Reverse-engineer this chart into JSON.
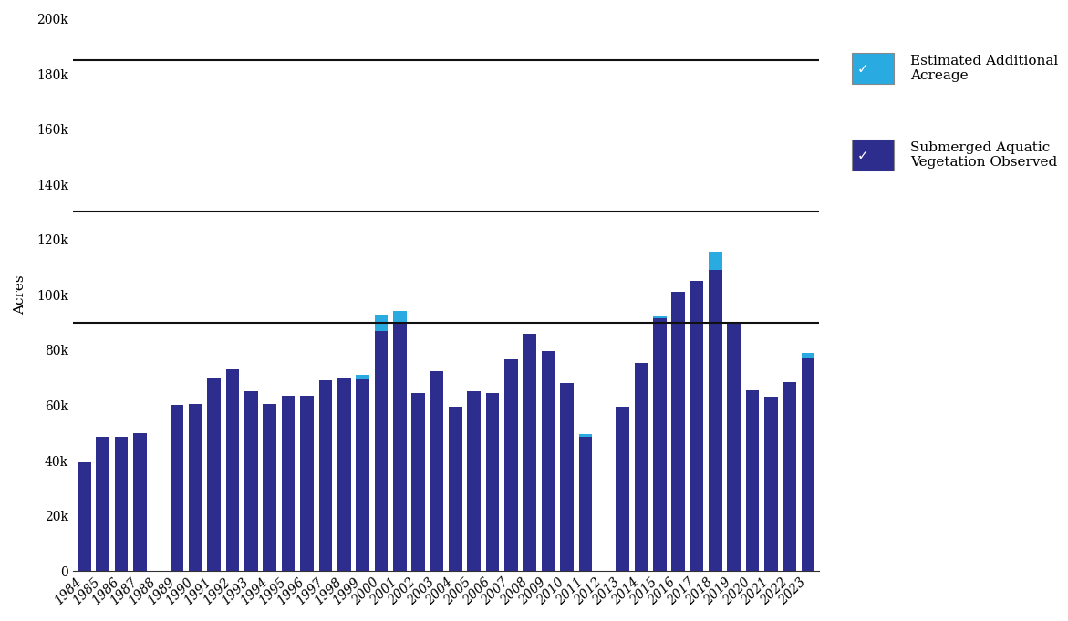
{
  "years": [
    1984,
    1985,
    1986,
    1987,
    1988,
    1989,
    1990,
    1991,
    1992,
    1993,
    1994,
    1995,
    1996,
    1997,
    1998,
    1999,
    2000,
    2001,
    2002,
    2003,
    2004,
    2005,
    2006,
    2007,
    2008,
    2009,
    2010,
    2011,
    2012,
    2013,
    2014,
    2015,
    2016,
    2017,
    2018,
    2019,
    2020,
    2021,
    2022,
    2023
  ],
  "sav_observed": [
    39500,
    48500,
    48500,
    50000,
    0,
    60000,
    60500,
    70000,
    73000,
    65000,
    60500,
    63500,
    63500,
    69000,
    70000,
    69500,
    87000,
    90000,
    64500,
    72500,
    59500,
    65000,
    64500,
    76500,
    86000,
    79500,
    68000,
    48500,
    0,
    59500,
    75500,
    91500,
    101000,
    105000,
    109000,
    90000,
    65500,
    63000,
    68500,
    77000
  ],
  "sav_additional": [
    0,
    0,
    0,
    0,
    0,
    0,
    0,
    0,
    0,
    0,
    0,
    0,
    0,
    0,
    0,
    1500,
    6000,
    4000,
    0,
    0,
    0,
    0,
    0,
    0,
    0,
    0,
    0,
    1000,
    0,
    0,
    0,
    1000,
    0,
    0,
    6500,
    0,
    0,
    0,
    0,
    2000
  ],
  "hline1": 185000,
  "hline2": 130000,
  "hline3": 90000,
  "bar_color_observed": "#2D2D8E",
  "bar_color_additional": "#29ABE2",
  "hline_color": "#111111",
  "ylabel": "Acres",
  "ylim": [
    0,
    200000
  ],
  "yticks": [
    0,
    20000,
    40000,
    60000,
    80000,
    100000,
    120000,
    140000,
    160000,
    180000,
    200000
  ],
  "legend_label1": "Estimated Additional\nAcreage",
  "legend_label2": "Submerged Aquatic\nVegetation Observed",
  "legend_color1": "#29ABE2",
  "legend_color2": "#2D2D8E",
  "bg_color": "#ffffff",
  "tick_fontsize": 10,
  "label_fontsize": 11
}
